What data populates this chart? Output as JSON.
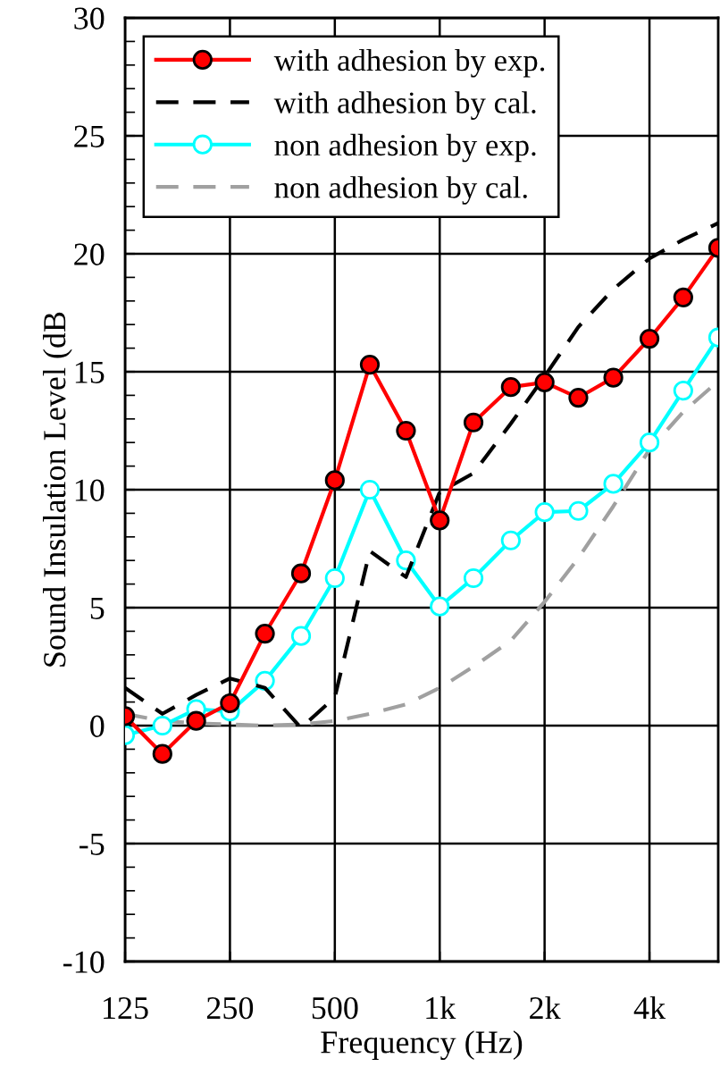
{
  "chart_data": {
    "type": "line",
    "xlabel": "Frequency (Hz)",
    "ylabel": "Sound Insulation Level (dB",
    "x": [
      125,
      160,
      200,
      250,
      315,
      400,
      500,
      630,
      800,
      1000,
      1250,
      1600,
      2000,
      2500,
      3150,
      4000,
      5000,
      6300
    ],
    "log": "x",
    "xlim": [
      125,
      6300
    ],
    "xticks": [
      125,
      250,
      500,
      {
        "value": 1000,
        "label": "1k"
      },
      {
        "value": 2000,
        "label": "2k"
      },
      {
        "value": 4000,
        "label": "4k"
      }
    ],
    "ylim": [
      -10,
      30
    ],
    "yticks": [
      -10,
      -5,
      0,
      5,
      10,
      15,
      20,
      25,
      30
    ],
    "grid": true,
    "legend": "top left",
    "series": [
      {
        "name": "with adhesion by exp.",
        "color": "#ff0000",
        "marker": "circle",
        "line_style": "solid",
        "values": [
          0.4,
          -1.2,
          0.2,
          0.95,
          3.9,
          6.45,
          10.4,
          15.3,
          12.5,
          8.7,
          12.85,
          14.35,
          14.55,
          13.9,
          14.75,
          16.4,
          18.15,
          20.25
        ]
      },
      {
        "name": "with adhesion by cal.",
        "color": "#000000",
        "marker": "none",
        "line_style": "dashed",
        "values": [
          1.6,
          0.5,
          1.3,
          2.0,
          1.6,
          -0.1,
          1.2,
          7.4,
          6.3,
          9.9,
          10.7,
          12.8,
          14.8,
          16.9,
          18.5,
          19.8,
          20.6,
          21.3
        ]
      },
      {
        "name": "non adhesion by exp.",
        "color": "#00ffff",
        "marker": "circle",
        "line_style": "solid",
        "values": [
          -0.4,
          0.0,
          0.7,
          0.6,
          1.9,
          3.8,
          6.25,
          10.0,
          7.0,
          5.05,
          6.25,
          7.85,
          9.05,
          9.1,
          10.25,
          12.0,
          14.2,
          16.45
        ]
      },
      {
        "name": "non adhesion by cal.",
        "color": "#a0a0a0",
        "marker": "none",
        "line_style": "dashed",
        "values": [
          0.5,
          0.2,
          0.1,
          0.05,
          0.0,
          0.05,
          0.2,
          0.5,
          0.9,
          1.6,
          2.5,
          3.6,
          5.25,
          7.1,
          9.3,
          11.7,
          13.3,
          14.6
        ]
      }
    ]
  }
}
